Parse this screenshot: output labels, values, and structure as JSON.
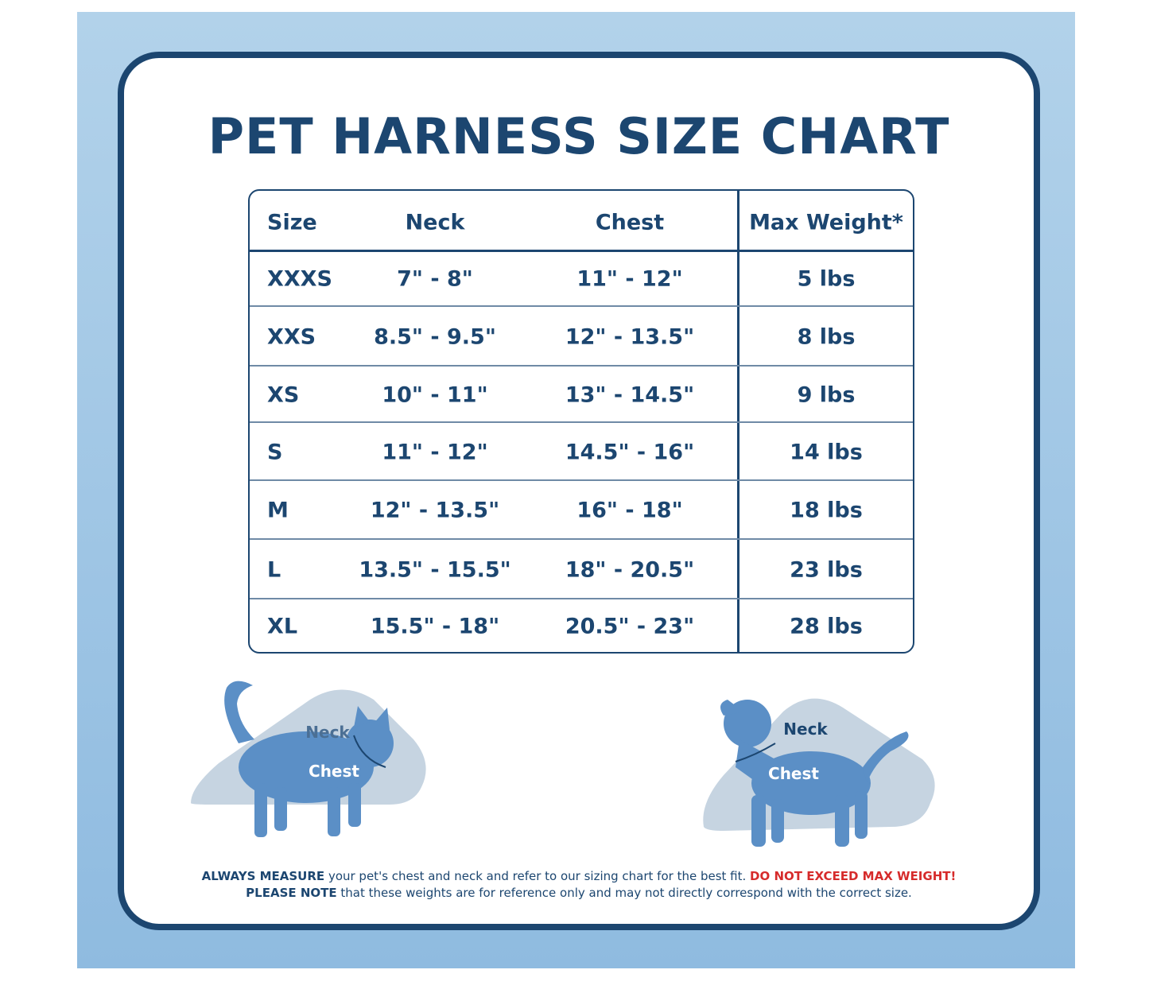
{
  "title": "PET HARNESS SIZE CHART",
  "table": {
    "headers": [
      "Size",
      "Neck",
      "Chest",
      "Max Weight*"
    ],
    "rows": [
      [
        "XXXS",
        "7\" - 8\"",
        "11\" - 12\"",
        "5 lbs"
      ],
      [
        "XXS",
        "8.5\" - 9.5\"",
        "12\" - 13.5\"",
        "8 lbs"
      ],
      [
        "XS",
        "10\" - 11\"",
        "13\" - 14.5\"",
        "9 lbs"
      ],
      [
        "S",
        "11\" - 12\"",
        "14.5\" - 16\"",
        "14 lbs"
      ],
      [
        "M",
        "12\" - 13.5\"",
        "16\" - 18\"",
        "18 lbs"
      ],
      [
        "L",
        "13.5\" - 15.5\"",
        "18\" - 20.5\"",
        "23 lbs"
      ],
      [
        "XL",
        "15.5\" - 18\"",
        "20.5\" - 23\"",
        "28 lbs"
      ]
    ]
  },
  "illustrations": {
    "cat": {
      "neck": "Neck",
      "chest": "Chest"
    },
    "dog": {
      "neck": "Neck",
      "chest": "Chest"
    }
  },
  "footer": {
    "line1": {
      "bold": "ALWAYS MEASURE",
      "text": "your pet's chest and neck and refer  to our sizing chart for the best fit.",
      "warning": "DO NOT EXCEED MAX WEIGHT!"
    },
    "line2": {
      "bold": "PLEASE NOTE",
      "text": "that these weights are for reference only and may not directly correspond with the correct size."
    }
  }
}
